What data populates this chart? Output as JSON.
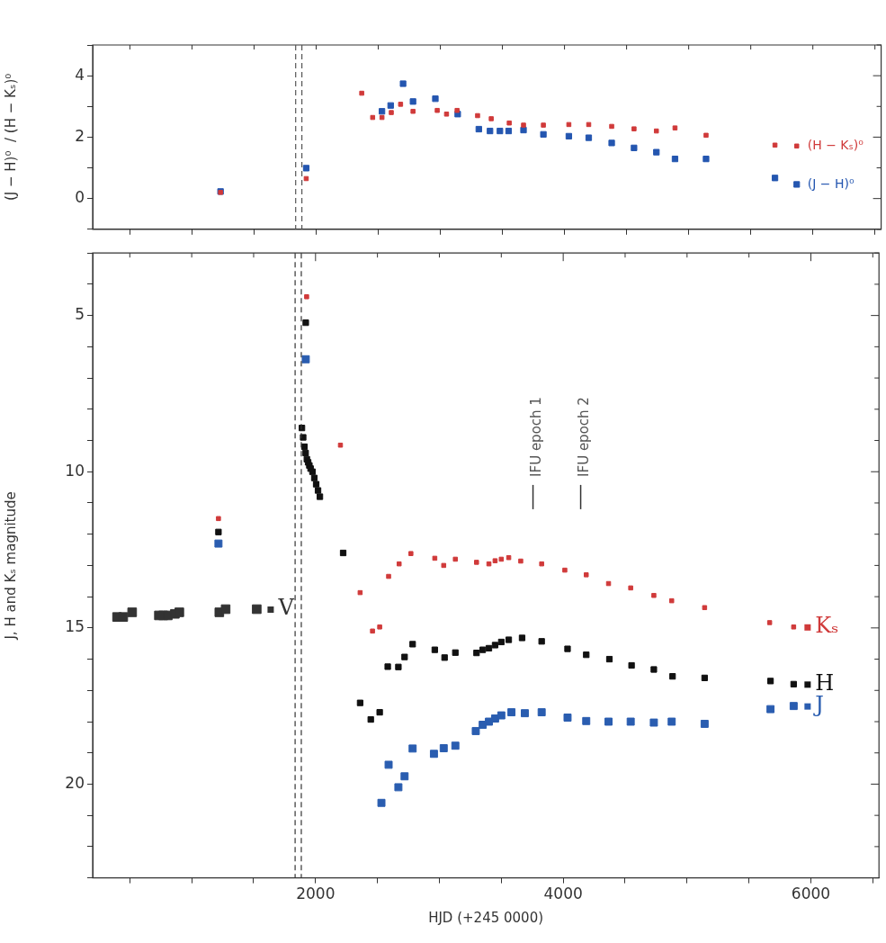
{
  "chart_data": [
    {
      "type": "scatter",
      "ylabel": "(J − H)⁰  / (H − Kₛ)⁰",
      "marker": "square",
      "tick_labels": "y",
      "xlim": [
        200,
        6550
      ],
      "xticks": [
        {
          "value": 500,
          "label": null
        },
        {
          "value": 1000,
          "label": null
        },
        {
          "value": 1500,
          "label": null
        },
        {
          "value": 2000,
          "label": null
        },
        {
          "value": 2500,
          "label": null
        },
        {
          "value": 3000,
          "label": null
        },
        {
          "value": 3500,
          "label": null
        },
        {
          "value": 4000,
          "label": null
        },
        {
          "value": 4500,
          "label": null
        },
        {
          "value": 5000,
          "label": null
        },
        {
          "value": 5500,
          "label": null
        },
        {
          "value": 6000,
          "label": null
        },
        {
          "value": 6500,
          "label": null
        }
      ],
      "ylim": [
        -1,
        5
      ],
      "yticks": [
        {
          "value": -1,
          "label": null
        },
        0,
        {
          "value": 1,
          "label": null
        },
        2,
        {
          "value": 3,
          "label": null
        },
        4,
        {
          "value": 5,
          "label": null
        }
      ],
      "ref_lines": [
        {
          "axis": "x",
          "value": 1835,
          "color": "#555555",
          "line_style": "dashed"
        },
        {
          "axis": "x",
          "value": 1885,
          "color": "#555555",
          "line_style": "dashed"
        }
      ],
      "series": [
        {
          "name": "(H − Kₛ)⁰",
          "color": "#d03a3a",
          "x": [
            1230,
            1920,
            2367,
            2455,
            2530,
            2605,
            2680,
            2780,
            2975,
            3050,
            3135,
            3300,
            3410,
            3555,
            3670,
            3830,
            4035,
            4195,
            4380,
            4560,
            4740,
            4890,
            5140,
            5695,
            5870
          ],
          "values": [
            0.2,
            0.65,
            3.43,
            2.64,
            2.64,
            2.8,
            3.07,
            2.84,
            2.87,
            2.75,
            2.87,
            2.7,
            2.6,
            2.46,
            2.39,
            2.39,
            2.41,
            2.41,
            2.35,
            2.27,
            2.2,
            2.3,
            2.06,
            1.74,
            1.71
          ]
        },
        {
          "name": "(J − H)⁰",
          "color": "#2456b0",
          "x": [
            1230,
            1920,
            2530,
            2600,
            2700,
            2780,
            2960,
            3140,
            3310,
            3400,
            3480,
            3550,
            3670,
            3830,
            4035,
            4195,
            4380,
            4560,
            4740,
            4890,
            5140,
            5695,
            5870
          ],
          "values": [
            0.23,
            0.99,
            2.84,
            3.03,
            3.74,
            3.16,
            3.25,
            2.75,
            2.26,
            2.2,
            2.2,
            2.2,
            2.23,
            2.09,
            2.03,
            1.98,
            1.81,
            1.65,
            1.51,
            1.29,
            1.29,
            0.67,
            0.46
          ]
        }
      ]
    },
    {
      "type": "scatter",
      "xlabel": "HJD (+245 0000)",
      "ylabel": "J, H and Kₛ magnitude",
      "marker": "square",
      "xlim": [
        200,
        6550
      ],
      "xticks": [
        {
          "value": 500,
          "label": null
        },
        {
          "value": 1000,
          "label": null
        },
        {
          "value": 1500,
          "label": null
        },
        2000,
        {
          "value": 2500,
          "label": null
        },
        {
          "value": 3000,
          "label": null
        },
        {
          "value": 3500,
          "label": null
        },
        4000,
        {
          "value": 4500,
          "label": null
        },
        {
          "value": 5000,
          "label": null
        },
        {
          "value": 5500,
          "label": null
        },
        6000,
        {
          "value": 6500,
          "label": null
        }
      ],
      "ylim": [
        23,
        3
      ],
      "yticks": [
        {
          "value": 3,
          "label": null
        },
        {
          "value": 4,
          "label": null
        },
        5,
        {
          "value": 6,
          "label": null
        },
        {
          "value": 7,
          "label": null
        },
        {
          "value": 8,
          "label": null
        },
        {
          "value": 9,
          "label": null
        },
        10,
        {
          "value": 11,
          "label": null
        },
        {
          "value": 12,
          "label": null
        },
        {
          "value": 13,
          "label": null
        },
        {
          "value": 14,
          "label": null
        },
        15,
        {
          "value": 16,
          "label": null
        },
        {
          "value": 17,
          "label": null
        },
        {
          "value": 18,
          "label": null
        },
        {
          "value": 19,
          "label": null
        },
        20,
        {
          "value": 21,
          "label": null
        },
        {
          "value": 22,
          "label": null
        },
        {
          "value": 23,
          "label": null
        }
      ],
      "ref_lines": [
        {
          "axis": "x",
          "value": 1835,
          "color": "#333333",
          "line_style": "dashed"
        },
        {
          "axis": "x",
          "value": 1885,
          "color": "#333333",
          "line_style": "dashed"
        }
      ],
      "annotations": [
        "IFU epoch 1",
        "IFU epoch 2"
      ],
      "legend": "right",
      "series": [
        {
          "name": "Kₛ",
          "color": "#d03a3a",
          "x": [
            1216,
            1928,
            2201,
            2360,
            2460,
            2518,
            2590,
            2675,
            2770,
            2963,
            3035,
            3129,
            3300,
            3400,
            3450,
            3500,
            3560,
            3657,
            3826,
            4013,
            4186,
            4366,
            4545,
            4732,
            4876,
            5142,
            5667,
            5861
          ],
          "values": [
            11.5,
            4.4,
            9.15,
            13.87,
            15.1,
            14.97,
            13.35,
            12.95,
            12.62,
            12.77,
            13.0,
            12.8,
            12.9,
            12.95,
            12.85,
            12.8,
            12.75,
            12.86,
            12.95,
            13.15,
            13.3,
            13.58,
            13.72,
            13.96,
            14.13,
            14.35,
            14.83,
            14.97
          ]
        },
        {
          "name": "H",
          "color": "#111111",
          "x": [
            1216,
            1921,
            1890,
            1900,
            1910,
            1920,
            1930,
            1940,
            1950,
            1960,
            1975,
            1990,
            2005,
            2020,
            2035,
            2223,
            2360,
            2446,
            2518,
            2583,
            2669,
            2719,
            2784,
            2963,
            3042,
            3129,
            3300,
            3350,
            3400,
            3450,
            3500,
            3560,
            3668,
            3826,
            4035,
            4186,
            4373,
            4552,
            4732,
            4883,
            5142,
            5674,
            5861
          ],
          "values": [
            11.93,
            5.23,
            8.6,
            8.9,
            9.2,
            9.4,
            9.6,
            9.7,
            9.8,
            9.9,
            10.0,
            10.2,
            10.4,
            10.6,
            10.8,
            12.6,
            17.4,
            17.93,
            17.7,
            16.24,
            16.25,
            15.93,
            15.52,
            15.7,
            15.95,
            15.79,
            15.8,
            15.7,
            15.65,
            15.55,
            15.45,
            15.38,
            15.32,
            15.43,
            15.67,
            15.86,
            16.0,
            16.2,
            16.33,
            16.55,
            16.6,
            16.7,
            16.8
          ]
        },
        {
          "name": "J",
          "color": "#2a5db0",
          "x": [
            1216,
            1921,
            2532,
            2590,
            2669,
            2719,
            2784,
            2956,
            3035,
            3129,
            3294,
            3350,
            3400,
            3450,
            3500,
            3582,
            3690,
            3826,
            4035,
            4186,
            4366,
            4545,
            4732,
            4876,
            5142,
            5674,
            5861
          ],
          "values": [
            12.3,
            6.4,
            20.6,
            19.38,
            20.1,
            19.75,
            18.86,
            19.03,
            18.85,
            18.77,
            18.3,
            18.1,
            18.0,
            17.9,
            17.8,
            17.7,
            17.73,
            17.7,
            17.87,
            17.98,
            18.0,
            18.0,
            18.03,
            18.0,
            18.07,
            17.6,
            17.5
          ]
        },
        {
          "name": "V",
          "color": "#333333",
          "x": [
            397,
            447,
            519,
            735,
            770,
            807,
            864,
            900,
            1223,
            1274,
            1525
          ],
          "values": [
            14.65,
            14.65,
            14.5,
            14.6,
            14.6,
            14.6,
            14.55,
            14.5,
            14.5,
            14.4,
            14.4
          ]
        }
      ]
    }
  ]
}
